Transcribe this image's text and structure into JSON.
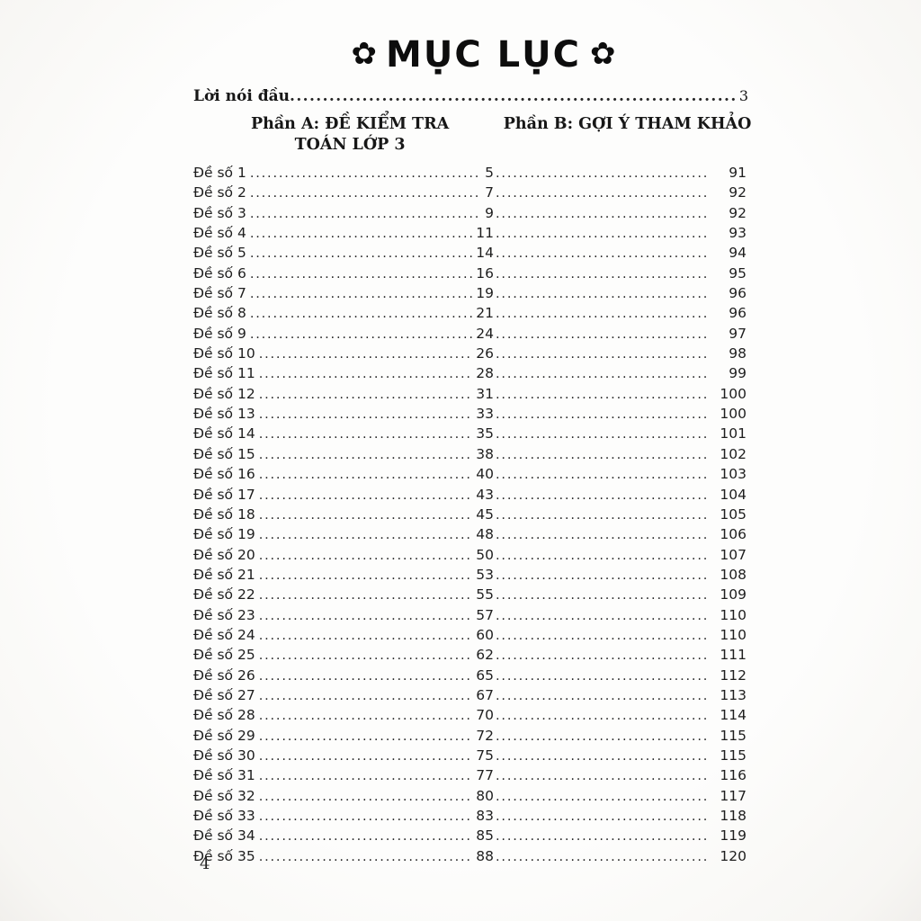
{
  "page": {
    "title": "MỤC LỤC",
    "florette": "✿",
    "folio": "4"
  },
  "preface": {
    "label": "Lời nói đầu",
    "page": "3"
  },
  "section_headers": {
    "part_a_line1": "Phần A: ĐỀ KIỂM TRA",
    "part_a_line2": "TOÁN LỚP 3",
    "part_b": "Phần B: GỢI Ý THAM KHẢO"
  },
  "entries": [
    {
      "label": "Đề số 1",
      "page_a": "5",
      "page_b": "91"
    },
    {
      "label": "Đề số 2",
      "page_a": "7",
      "page_b": "92"
    },
    {
      "label": "Đề số 3",
      "page_a": "9",
      "page_b": "92"
    },
    {
      "label": "Đề số 4",
      "page_a": "11",
      "page_b": "93"
    },
    {
      "label": "Đề số 5",
      "page_a": "14",
      "page_b": "94"
    },
    {
      "label": "Đề số 6",
      "page_a": "16",
      "page_b": "95"
    },
    {
      "label": "Đề số 7",
      "page_a": "19",
      "page_b": "96"
    },
    {
      "label": "Đề số 8",
      "page_a": "21",
      "page_b": "96"
    },
    {
      "label": "Đề số 9",
      "page_a": "24",
      "page_b": "97"
    },
    {
      "label": "Đề số 10",
      "page_a": "26",
      "page_b": "98"
    },
    {
      "label": "Đề số 11",
      "page_a": "28",
      "page_b": "99"
    },
    {
      "label": "Đề số 12",
      "page_a": "31",
      "page_b": "100"
    },
    {
      "label": "Đề số 13",
      "page_a": "33",
      "page_b": "100"
    },
    {
      "label": "Đề số 14",
      "page_a": "35",
      "page_b": "101"
    },
    {
      "label": "Đề số 15",
      "page_a": "38",
      "page_b": "102"
    },
    {
      "label": "Đề số 16",
      "page_a": "40",
      "page_b": "103"
    },
    {
      "label": "Đề số 17",
      "page_a": "43",
      "page_b": "104"
    },
    {
      "label": "Đề số 18",
      "page_a": "45",
      "page_b": "105"
    },
    {
      "label": "Đề số 19",
      "page_a": "48",
      "page_b": "106"
    },
    {
      "label": "Đề số 20",
      "page_a": "50",
      "page_b": "107"
    },
    {
      "label": "Đề số 21",
      "page_a": "53",
      "page_b": "108"
    },
    {
      "label": "Đề số 22",
      "page_a": "55",
      "page_b": "109"
    },
    {
      "label": "Đề số 23",
      "page_a": "57",
      "page_b": "110"
    },
    {
      "label": "Đề số 24",
      "page_a": "60",
      "page_b": "110"
    },
    {
      "label": "Đề số 25",
      "page_a": "62",
      "page_b": "111"
    },
    {
      "label": "Đề số 26",
      "page_a": "65",
      "page_b": "112"
    },
    {
      "label": "Đề số 27",
      "page_a": "67",
      "page_b": "113"
    },
    {
      "label": "Đề số 28",
      "page_a": "70",
      "page_b": "114"
    },
    {
      "label": "Đề số 29",
      "page_a": "72",
      "page_b": "115"
    },
    {
      "label": "Đề số 30",
      "page_a": "75",
      "page_b": "115"
    },
    {
      "label": "Đề số 31",
      "page_a": "77",
      "page_b": "116"
    },
    {
      "label": "Đề số 32",
      "page_a": "80",
      "page_b": "117"
    },
    {
      "label": "Đề số 33",
      "page_a": "83",
      "page_b": "118"
    },
    {
      "label": "Đề số 34",
      "page_a": "85",
      "page_b": "119"
    },
    {
      "label": "Đề số 35",
      "page_a": "88",
      "page_b": "120"
    }
  ]
}
